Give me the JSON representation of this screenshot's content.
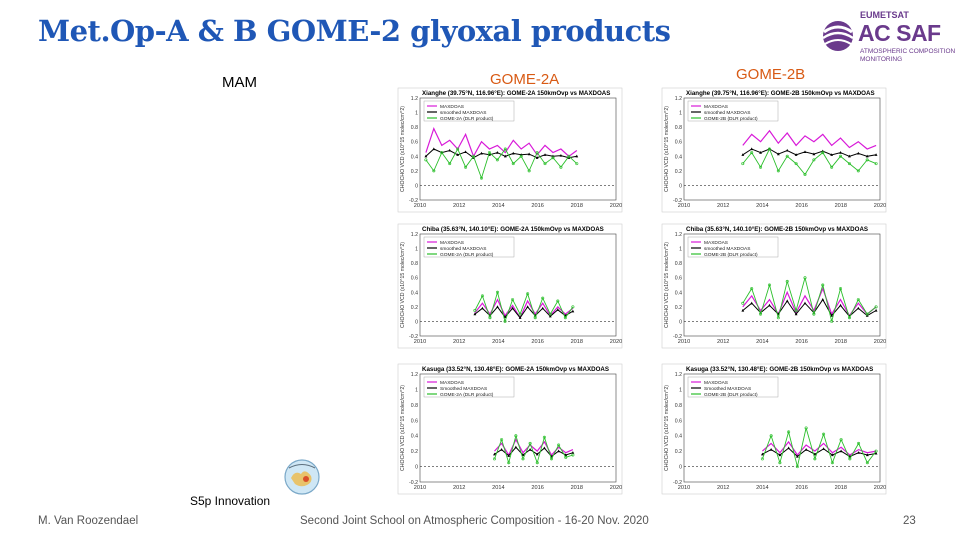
{
  "slide": {
    "title": "Met.Op-A & B GOME-2 glyoxal products",
    "season_label": "MAM",
    "columns": [
      "GOME-2A",
      "GOME-2B"
    ],
    "logo": {
      "line1": "EUMETSAT",
      "line2": "AC SAF",
      "line3": "ATMOSPHERIC COMPOSITION",
      "line4": "MONITORING",
      "icon": "eumetsat-acsaf-logo"
    },
    "inset_caption": "S5p Innovation",
    "inset_icon": "glyoxal-s5p-badge",
    "footer": {
      "author": "M. Van Roozendael",
      "event": "Second Joint School on Atmospheric Composition - 16-20 Nov. 2020",
      "page": "23"
    },
    "colors": {
      "title": "#1f57b6",
      "column_head": "#d85a14",
      "maxdoas": "#d81ad8",
      "smoothed": "#000000",
      "gome": "#2bbf2b"
    }
  },
  "chart_data": [
    {
      "type": "line",
      "title": "Xianghe (39.75°N, 116.96°E): GOME-2A 150kmOvp vs MAXDOAS",
      "ylabel": "CHOCHO VCD (x10^15 molec/cm^2)",
      "ylim": [
        -0.2,
        1.2
      ],
      "xlim": [
        2010,
        2020
      ],
      "xticks": [
        "2010",
        "2012",
        "2014",
        "2016",
        "2018",
        "2020"
      ],
      "yticks": [
        "-0.2",
        "0",
        "0.2",
        "0.4",
        "0.6",
        "0.8",
        "1",
        "1.2"
      ],
      "legend": [
        "MAXDOAS",
        "smoothed MAXDOAS",
        "GOME-2A (DLR product)"
      ],
      "x_start": 2010.3,
      "x_end": 2018.0,
      "series": [
        {
          "name": "MAXDOAS",
          "values": [
            0.45,
            0.78,
            0.55,
            0.62,
            0.5,
            0.7,
            0.4,
            0.6,
            0.5,
            0.55,
            0.45,
            0.62,
            0.5,
            0.58,
            0.42,
            0.55,
            0.45,
            0.5,
            0.4,
            0.48
          ]
        },
        {
          "name": "smoothed MAXDOAS",
          "values": [
            0.4,
            0.5,
            0.45,
            0.48,
            0.42,
            0.46,
            0.38,
            0.44,
            0.42,
            0.45,
            0.4,
            0.44,
            0.42,
            0.43,
            0.38,
            0.42,
            0.4,
            0.41,
            0.38,
            0.4
          ]
        },
        {
          "name": "GOME-2A (DLR product)",
          "values": [
            0.35,
            0.2,
            0.45,
            0.3,
            0.5,
            0.25,
            0.4,
            0.1,
            0.45,
            0.35,
            0.5,
            0.3,
            0.4,
            0.2,
            0.45,
            0.3,
            0.38,
            0.25,
            0.4,
            0.3
          ]
        }
      ]
    },
    {
      "type": "line",
      "title": "Xianghe (39.75°N, 116.96°E): GOME-2B 150kmOvp vs MAXDOAS",
      "ylabel": "CHOCHO VCD (x10^15 molec/cm^2)",
      "ylim": [
        -0.2,
        1.2
      ],
      "xlim": [
        2010,
        2020
      ],
      "xticks": [
        "2010",
        "2012",
        "2014",
        "2016",
        "2018",
        "2020"
      ],
      "yticks": [
        "-0.2",
        "0",
        "0.2",
        "0.4",
        "0.6",
        "0.8",
        "1",
        "1.2"
      ],
      "legend": [
        "MAXDOAS",
        "smoothed MAXDOAS",
        "GOME-2B (DLR product)"
      ],
      "x_start": 2013.0,
      "x_end": 2019.8,
      "series": [
        {
          "name": "MAXDOAS",
          "values": [
            0.55,
            0.7,
            0.6,
            0.75,
            0.58,
            0.72,
            0.55,
            0.68,
            0.6,
            0.7,
            0.55,
            0.65,
            0.52,
            0.6,
            0.5,
            0.55
          ]
        },
        {
          "name": "smoothed MAXDOAS",
          "values": [
            0.42,
            0.5,
            0.45,
            0.5,
            0.43,
            0.48,
            0.42,
            0.46,
            0.43,
            0.47,
            0.42,
            0.45,
            0.4,
            0.44,
            0.4,
            0.42
          ]
        },
        {
          "name": "GOME-2B (DLR product)",
          "values": [
            0.3,
            0.45,
            0.25,
            0.5,
            0.2,
            0.4,
            0.3,
            0.15,
            0.35,
            0.45,
            0.25,
            0.4,
            0.3,
            0.2,
            0.35,
            0.3
          ]
        }
      ]
    },
    {
      "type": "line",
      "title": "Chiba (35.63°N, 140.10°E): GOME-2A 150kmOvp vs MAXDOAS",
      "ylabel": "CHOCHO VCD (x10^15 molec/cm^2)",
      "ylim": [
        -0.2,
        1.2
      ],
      "xlim": [
        2010,
        2020
      ],
      "xticks": [
        "2010",
        "2012",
        "2014",
        "2016",
        "2018",
        "2020"
      ],
      "yticks": [
        "-0.2",
        "0",
        "0.2",
        "0.4",
        "0.6",
        "0.8",
        "1",
        "1.2"
      ],
      "legend": [
        "MAXDOAS",
        "smoothed MAXDOAS",
        "GOME-2A (DLR product)"
      ],
      "x_start": 2012.8,
      "x_end": 2017.8,
      "series": [
        {
          "name": "MAXDOAS",
          "values": [
            0.12,
            0.25,
            0.1,
            0.3,
            0.08,
            0.22,
            0.05,
            0.28,
            0.1,
            0.25,
            0.08,
            0.2,
            0.1,
            0.18
          ]
        },
        {
          "name": "smoothed MAXDOAS",
          "values": [
            0.1,
            0.18,
            0.08,
            0.2,
            0.06,
            0.18,
            0.05,
            0.2,
            0.08,
            0.18,
            0.07,
            0.16,
            0.08,
            0.14
          ]
        },
        {
          "name": "GOME-2A (DLR product)",
          "values": [
            0.15,
            0.35,
            0.05,
            0.4,
            0.0,
            0.3,
            0.1,
            0.38,
            0.05,
            0.32,
            0.1,
            0.28,
            0.05,
            0.2
          ]
        }
      ]
    },
    {
      "type": "line",
      "title": "Chiba (35.63°N, 140.10°E): GOME-2B 150kmOvp vs MAXDOAS",
      "ylabel": "CHOCHO VCD (x10^15 molec/cm^2)",
      "ylim": [
        -0.2,
        1.2
      ],
      "xlim": [
        2010,
        2020
      ],
      "xticks": [
        "2010",
        "2012",
        "2014",
        "2016",
        "2018",
        "2020"
      ],
      "yticks": [
        "-0.2",
        "0",
        "0.2",
        "0.4",
        "0.6",
        "0.8",
        "1",
        "1.2"
      ],
      "legend": [
        "MAXDOAS",
        "smoothed MAXDOAS",
        "GOME-2B (DLR product)"
      ],
      "x_start": 2013.0,
      "x_end": 2019.8,
      "series": [
        {
          "name": "MAXDOAS",
          "values": [
            0.2,
            0.35,
            0.15,
            0.3,
            0.1,
            0.4,
            0.12,
            0.35,
            0.15,
            0.45,
            0.1,
            0.3,
            0.08,
            0.25,
            0.1,
            0.2
          ]
        },
        {
          "name": "smoothed MAXDOAS",
          "values": [
            0.15,
            0.25,
            0.12,
            0.22,
            0.1,
            0.28,
            0.1,
            0.25,
            0.12,
            0.3,
            0.08,
            0.22,
            0.07,
            0.18,
            0.08,
            0.15
          ]
        },
        {
          "name": "GOME-2B (DLR product)",
          "values": [
            0.25,
            0.45,
            0.1,
            0.5,
            0.05,
            0.55,
            0.15,
            0.6,
            0.1,
            0.5,
            0.0,
            0.45,
            0.05,
            0.3,
            0.1,
            0.2
          ]
        }
      ]
    },
    {
      "type": "line",
      "title": "Kasuga (33.52°N, 130.48°E): GOME-2A 150kmOvp vs MAXDOAS",
      "ylabel": "CHOCHO VCD (x10^15 molec/cm^2)",
      "ylim": [
        -0.2,
        1.2
      ],
      "xlim": [
        2010,
        2020
      ],
      "xticks": [
        "2010",
        "2012",
        "2014",
        "2016",
        "2018",
        "2020"
      ],
      "yticks": [
        "-0.2",
        "0",
        "0.2",
        "0.4",
        "0.6",
        "0.8",
        "1",
        "1.2"
      ],
      "legend": [
        "MAXDOAS",
        "Smoothed MAXDOAS",
        "GOME-2A (DLR product)"
      ],
      "x_start": 2013.8,
      "x_end": 2017.8,
      "series": [
        {
          "name": "MAXDOAS",
          "values": [
            0.2,
            0.3,
            0.15,
            0.35,
            0.18,
            0.28,
            0.2,
            0.32,
            0.15,
            0.25,
            0.18,
            0.22
          ]
        },
        {
          "name": "Smoothed MAXDOAS",
          "values": [
            0.16,
            0.22,
            0.14,
            0.25,
            0.15,
            0.22,
            0.16,
            0.24,
            0.13,
            0.2,
            0.15,
            0.18
          ]
        },
        {
          "name": "GOME-2A (DLR product)",
          "values": [
            0.1,
            0.35,
            0.05,
            0.4,
            0.1,
            0.3,
            0.05,
            0.38,
            0.1,
            0.28,
            0.12,
            0.15
          ]
        }
      ]
    },
    {
      "type": "line",
      "title": "Kasuga (33.52°N, 130.48°E): GOME-2B 150kmOvp vs MAXDOAS",
      "ylabel": "CHOCHO VCD (x10^15 molec/cm^2)",
      "ylim": [
        -0.2,
        1.2
      ],
      "xlim": [
        2010,
        2020
      ],
      "xticks": [
        "2010",
        "2012",
        "2014",
        "2016",
        "2018",
        "2020"
      ],
      "yticks": [
        "-0.2",
        "0",
        "0.2",
        "0.4",
        "0.6",
        "0.8",
        "1",
        "1.2"
      ],
      "legend": [
        "MAXDOAS",
        "Smoothed MAXDOAS",
        "GOME-2B (DLR product)"
      ],
      "x_start": 2014.0,
      "x_end": 2019.8,
      "series": [
        {
          "name": "MAXDOAS",
          "values": [
            0.2,
            0.3,
            0.18,
            0.32,
            0.15,
            0.28,
            0.2,
            0.3,
            0.18,
            0.25,
            0.15,
            0.22,
            0.18,
            0.2
          ]
        },
        {
          "name": "Smoothed MAXDOAS",
          "values": [
            0.16,
            0.22,
            0.15,
            0.24,
            0.13,
            0.22,
            0.16,
            0.23,
            0.15,
            0.2,
            0.13,
            0.18,
            0.15,
            0.17
          ]
        },
        {
          "name": "GOME-2B (DLR product)",
          "values": [
            0.1,
            0.4,
            0.05,
            0.45,
            0.0,
            0.5,
            0.1,
            0.42,
            0.05,
            0.35,
            0.1,
            0.3,
            0.05,
            0.2
          ]
        }
      ]
    }
  ]
}
